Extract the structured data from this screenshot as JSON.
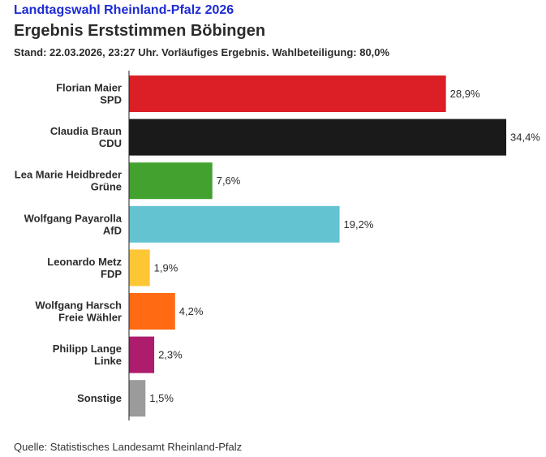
{
  "header": {
    "kicker": "Landtagswahl Rheinland-Pfalz 2026",
    "title": "Ergebnis Erststimmen Böbingen",
    "subtitle": "Stand: 22.03.2026, 23:27 Uhr. Vorläufiges Ergebnis. Wahlbeteiligung: 80,0%"
  },
  "footer": {
    "source": "Quelle: Statistisches Landesamt Rheinland-Pfalz"
  },
  "chart_data": {
    "type": "bar",
    "orientation": "horizontal",
    "categories": [
      [
        "Florian Maier",
        "SPD"
      ],
      [
        "Claudia Braun",
        "CDU"
      ],
      [
        "Lea Marie Heidbreder",
        "Grüne"
      ],
      [
        "Wolfgang Payarolla",
        "AfD"
      ],
      [
        "Leonardo Metz",
        "FDP"
      ],
      [
        "Wolfgang Harsch",
        "Freie Wähler"
      ],
      [
        "Philipp Lange",
        "Linke"
      ],
      [
        "Sonstige"
      ]
    ],
    "values": [
      28.9,
      34.4,
      7.6,
      19.2,
      1.9,
      4.2,
      2.3,
      1.5
    ],
    "value_labels": [
      "28,9%",
      "34,4%",
      "7,6%",
      "19,2%",
      "1,9%",
      "4,2%",
      "2,3%",
      "1,5%"
    ],
    "colors": [
      "#dc1f26",
      "#1a1a1a",
      "#42a12f",
      "#64c3d1",
      "#fdc635",
      "#ff6a12",
      "#ad1c6d",
      "#9b9b9b"
    ],
    "xlim": [
      0,
      34.4
    ],
    "grid": false,
    "legend": "none"
  }
}
